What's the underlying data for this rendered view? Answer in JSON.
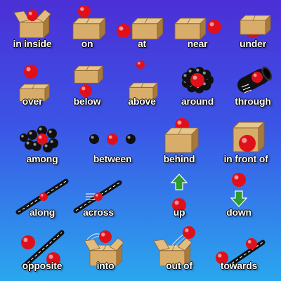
{
  "palette": {
    "ball": "#e0101a",
    "box_light": "#d8ad6a",
    "box_dark": "#a77a3c",
    "arrow": "#2d9b2f",
    "road": "#111111",
    "ball_black": "#101010"
  },
  "prepositions": [
    {
      "label": "in inside",
      "icon": "ball-in-open-box-icon"
    },
    {
      "label": "on",
      "icon": "ball-on-box-icon"
    },
    {
      "label": "at",
      "icon": "ball-at-box-icon"
    },
    {
      "label": "near",
      "icon": "ball-near-box-icon"
    },
    {
      "label": "under",
      "icon": "ball-under-box-icon"
    },
    {
      "label": "over",
      "icon": "ball-over-box-icon"
    },
    {
      "label": "below",
      "icon": "ball-below-box-icon"
    },
    {
      "label": "above",
      "icon": "ball-above-box-icon"
    },
    {
      "label": "around",
      "icon": "ball-around-icon"
    },
    {
      "label": "through",
      "icon": "ball-through-pipe-icon"
    },
    {
      "label": "among",
      "icon": "ball-among-icon"
    },
    {
      "label": "between",
      "icon": "ball-between-icon"
    },
    {
      "label": "behind",
      "icon": "ball-behind-box-icon"
    },
    {
      "label": "in front of",
      "icon": "ball-in-front-of-box-icon"
    },
    {
      "label": "along",
      "icon": "ball-along-road-icon"
    },
    {
      "label": "across",
      "icon": "ball-across-road-icon"
    },
    {
      "label": "up",
      "icon": "up-arrow-icon"
    },
    {
      "label": "down",
      "icon": "down-arrow-icon"
    },
    {
      "label": "opposite",
      "icon": "ball-opposite-road-icon"
    },
    {
      "label": "into",
      "icon": "ball-into-box-icon"
    },
    {
      "label": "out of",
      "icon": "ball-out-of-box-icon"
    },
    {
      "label": "towards",
      "icon": "ball-towards-icon"
    }
  ]
}
